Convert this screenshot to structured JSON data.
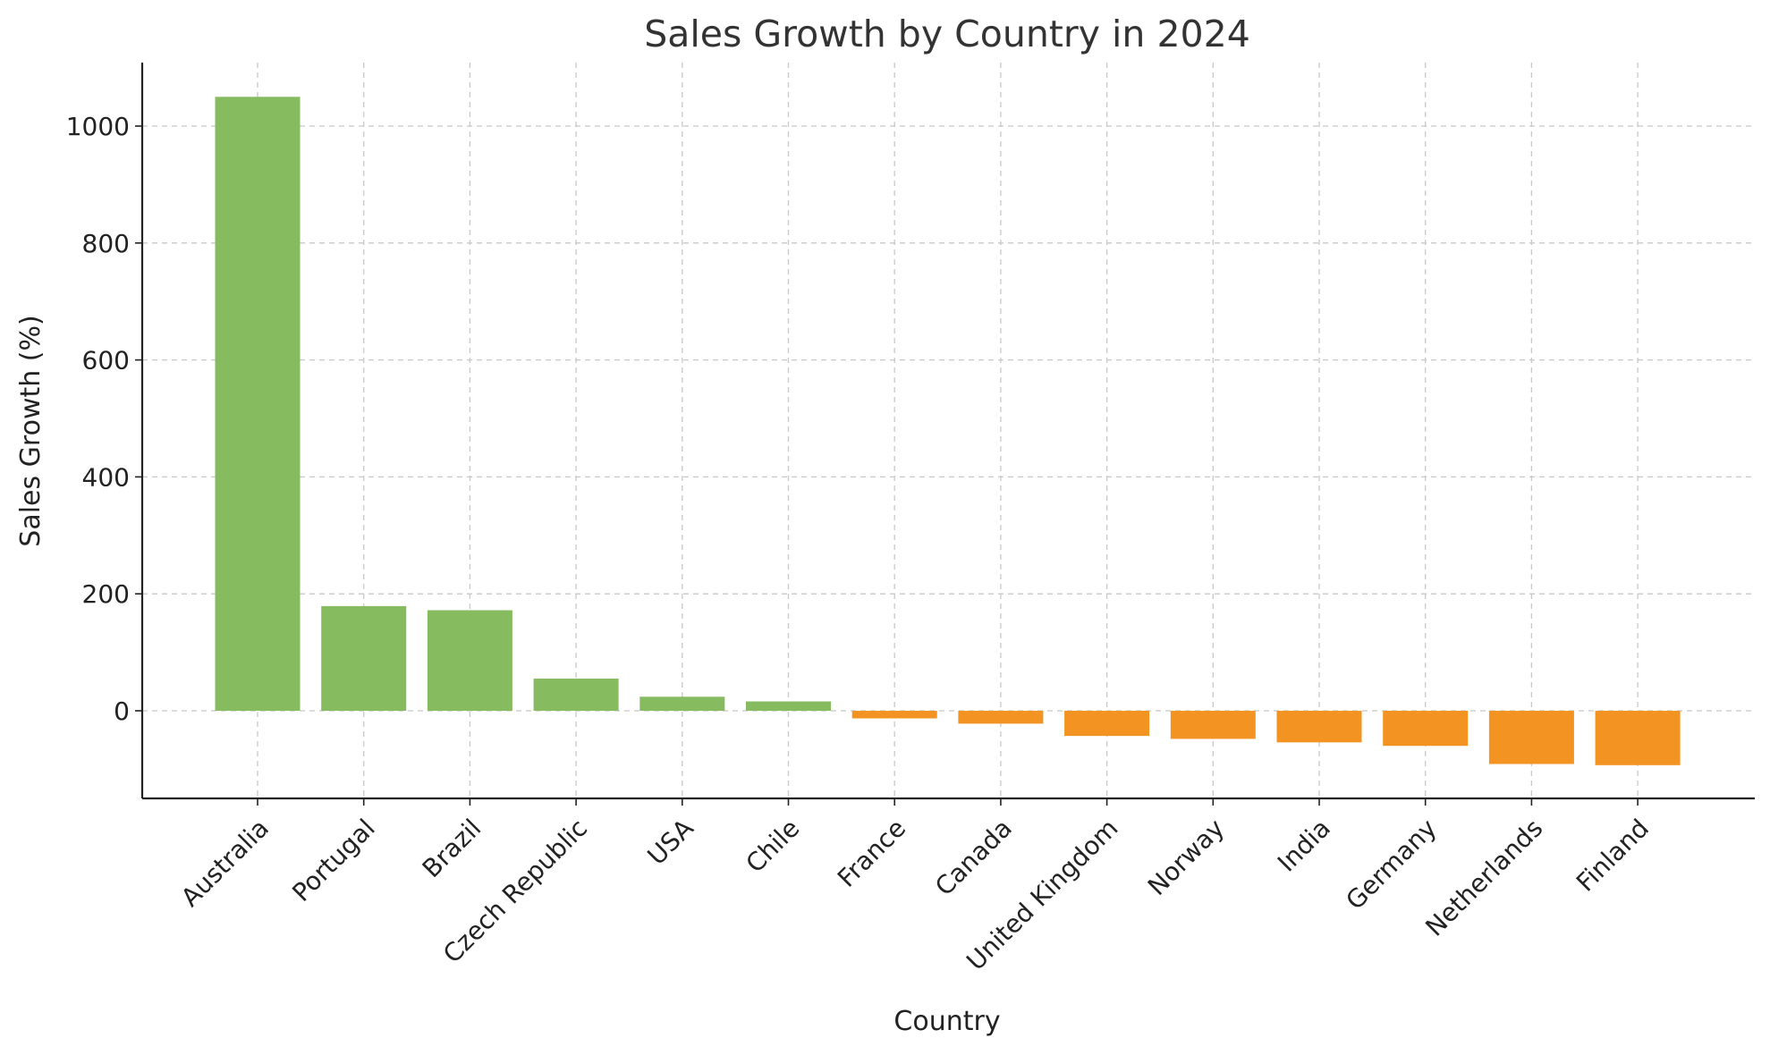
{
  "chart_data": {
    "type": "bar",
    "title": "Sales Growth by Country in 2024",
    "xlabel": "Country",
    "ylabel": "Sales Growth (%)",
    "categories": [
      "Australia",
      "Portugal",
      "Brazil",
      "Czech Republic",
      "USA",
      "Chile",
      "France",
      "Canada",
      "United Kingdom",
      "Norway",
      "India",
      "Germany",
      "Netherlands",
      "Finland"
    ],
    "values": [
      1050,
      179,
      172,
      55,
      24,
      16,
      -13,
      -22,
      -43,
      -48,
      -54,
      -60,
      -91,
      -93
    ],
    "ylim": [
      -150,
      1100
    ],
    "yticks": [
      0,
      200,
      400,
      600,
      800,
      1000
    ],
    "grid": true,
    "colors": {
      "positive": "#86bb60",
      "negative": "#f39322"
    }
  }
}
